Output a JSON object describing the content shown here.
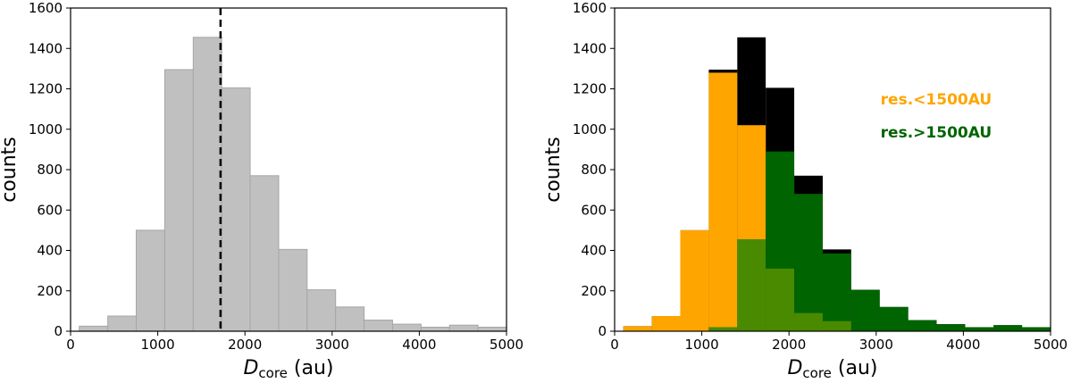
{
  "chart_data": [
    {
      "type": "bar",
      "xlabel_main": "D",
      "xlabel_sub": "core",
      "xlabel_unit": " (au)",
      "ylabel": "counts",
      "xlim": [
        0,
        5000
      ],
      "ylim": [
        0,
        1600
      ],
      "xticks": [
        0,
        1000,
        2000,
        3000,
        4000,
        5000
      ],
      "yticks": [
        0,
        200,
        400,
        600,
        800,
        1000,
        1200,
        1400,
        1600
      ],
      "bin_edges": [
        100,
        427,
        753,
        1080,
        1407,
        1733,
        2060,
        2387,
        2713,
        3040,
        3367,
        3693,
        4020,
        4347,
        4673,
        5000
      ],
      "series": [
        {
          "values": [
            25,
            75,
            500,
            1295,
            1455,
            1205,
            770,
            405,
            205,
            120,
            55,
            35,
            20,
            30,
            20
          ],
          "color": "#c0c0c0"
        }
      ],
      "vline_x": 1720,
      "grid": false
    },
    {
      "type": "bar",
      "xlabel_main": "D",
      "xlabel_sub": "core",
      "xlabel_unit": " (au)",
      "ylabel": "counts",
      "xlim": [
        0,
        5000
      ],
      "ylim": [
        0,
        1600
      ],
      "xticks": [
        0,
        1000,
        2000,
        3000,
        4000,
        5000
      ],
      "yticks": [
        0,
        200,
        400,
        600,
        800,
        1000,
        1200,
        1400,
        1600
      ],
      "bin_edges": [
        100,
        427,
        753,
        1080,
        1407,
        1733,
        2060,
        2387,
        2713,
        3040,
        3367,
        3693,
        4020,
        4347,
        4673,
        5000
      ],
      "series": [
        {
          "values": [
            25,
            75,
            500,
            1295,
            1455,
            1205,
            770,
            405,
            205,
            120,
            55,
            35,
            20,
            30,
            20
          ],
          "color": "#000000"
        },
        {
          "name": "res.<1500AU",
          "values": [
            25,
            75,
            500,
            1280,
            1020,
            310,
            90,
            50,
            0,
            0,
            0,
            0,
            0,
            0,
            0
          ],
          "color": "#ffa500"
        },
        {
          "name": "res.>1500AU",
          "values": [
            0,
            0,
            0,
            20,
            455,
            890,
            680,
            385,
            205,
            120,
            55,
            35,
            20,
            30,
            20
          ],
          "color": "#006400"
        }
      ],
      "overlap_color": "#4a8a00",
      "legend_placement": "upper-right",
      "grid": false
    }
  ]
}
